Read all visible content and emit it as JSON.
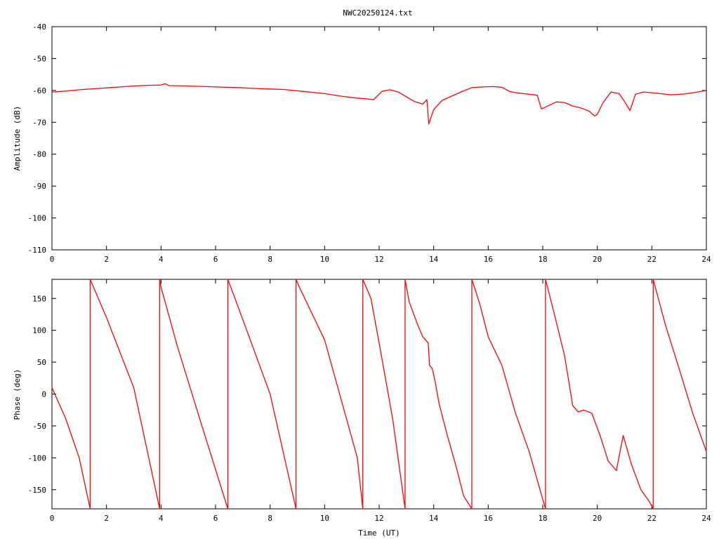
{
  "title": "NWC20250124.txt",
  "chart_data": [
    {
      "type": "line",
      "ylabel": "Amplitude (dB)",
      "xlabel": "",
      "xlim": [
        0,
        24
      ],
      "ylim": [
        -110,
        -40
      ],
      "xticks": [
        0,
        2,
        4,
        6,
        8,
        10,
        12,
        14,
        16,
        18,
        20,
        22,
        24
      ],
      "yticks": [
        -110,
        -100,
        -90,
        -80,
        -70,
        -60,
        -50,
        -40
      ],
      "grid": false,
      "line_color": "#ff0000",
      "series": [
        {
          "x": [
            0,
            0.5,
            1,
            1.5,
            2,
            2.5,
            3,
            3.5,
            4,
            4.15,
            4.3,
            5,
            6,
            6.8,
            7.5,
            8.5,
            9.2,
            10,
            10.6,
            11.2,
            11.5,
            11.8,
            12.1,
            12.4,
            12.7,
            13.0,
            13.3,
            13.6,
            13.75,
            13.82,
            13.88,
            14.0,
            14.3,
            14.6,
            15.0,
            15.4,
            15.8,
            16.2,
            16.5,
            16.8,
            17.1,
            17.5,
            17.8,
            17.95,
            18.2,
            18.5,
            18.8,
            19.1,
            19.4,
            19.7,
            19.9,
            20.0,
            20.2,
            20.5,
            20.8,
            21.0,
            21.2,
            21.4,
            21.7,
            22.2,
            22.7,
            23.2,
            23.6,
            24
          ],
          "y": [
            -60.5,
            -60.2,
            -59.8,
            -59.5,
            -59.2,
            -58.9,
            -58.6,
            -58.4,
            -58.3,
            -57.9,
            -58.5,
            -58.6,
            -58.9,
            -59.1,
            -59.4,
            -59.7,
            -60.3,
            -61.0,
            -61.8,
            -62.4,
            -62.6,
            -62.9,
            -60.3,
            -59.8,
            -60.5,
            -62.0,
            -63.5,
            -64.3,
            -62.9,
            -70.5,
            -69.0,
            -66.0,
            -63.2,
            -62.0,
            -60.5,
            -59.1,
            -58.9,
            -58.8,
            -59.0,
            -60.4,
            -60.8,
            -61.2,
            -61.5,
            -65.8,
            -64.8,
            -63.6,
            -63.8,
            -64.9,
            -65.5,
            -66.5,
            -68.0,
            -67.5,
            -64.0,
            -60.5,
            -61.0,
            -63.5,
            -66.3,
            -61.2,
            -60.5,
            -60.9,
            -61.4,
            -61.1,
            -60.6,
            -60.0
          ]
        }
      ]
    },
    {
      "type": "line",
      "ylabel": "Phase (deg)",
      "xlabel": "Time (UT)",
      "xlim": [
        0,
        24
      ],
      "ylim": [
        -180,
        180
      ],
      "xticks": [
        0,
        2,
        4,
        6,
        8,
        10,
        12,
        14,
        16,
        18,
        20,
        22,
        24
      ],
      "yticks": [
        -150,
        -100,
        -50,
        0,
        50,
        100,
        150
      ],
      "grid": false,
      "line_color": "#ff0000",
      "series": [
        {
          "x": [
            0,
            0.5,
            1.0,
            1.4,
            1.4,
            2.0,
            3.0,
            3.95,
            3.95,
            4.0,
            4.6,
            5.5,
            6.45,
            6.45,
            7.0,
            8.0,
            8.95,
            8.95,
            9.05,
            10.0,
            11.2,
            11.4,
            11.4,
            11.7,
            12.0,
            12.5,
            12.95,
            12.95,
            13.1,
            13.4,
            13.6,
            13.8,
            13.85,
            13.95,
            14.05,
            14.2,
            14.5,
            14.8,
            15.1,
            15.4,
            15.4,
            15.7,
            16.0,
            16.5,
            17.0,
            17.5,
            17.9,
            18.1,
            18.1,
            18.4,
            18.8,
            19.1,
            19.3,
            19.5,
            19.8,
            20.1,
            20.4,
            20.7,
            20.95,
            21.25,
            21.6,
            21.9,
            22.05,
            22.05,
            22.5,
            23.0,
            23.5,
            24.0
          ],
          "y": [
            10,
            -38,
            -100,
            -180,
            180,
            120,
            10,
            -180,
            180,
            168,
            75,
            -50,
            -180,
            180,
            117,
            0,
            -180,
            180,
            170,
            85,
            -100,
            -180,
            180,
            150,
            80,
            -40,
            -180,
            180,
            145,
            110,
            90,
            80,
            45,
            40,
            20,
            -15,
            -65,
            -110,
            -160,
            -180,
            180,
            140,
            90,
            45,
            -30,
            -90,
            -150,
            -180,
            180,
            130,
            60,
            -18,
            -28,
            -25,
            -30,
            -65,
            -105,
            -120,
            -65,
            -110,
            -150,
            -168,
            -180,
            180,
            108,
            40,
            -30,
            -90
          ]
        }
      ]
    }
  ]
}
